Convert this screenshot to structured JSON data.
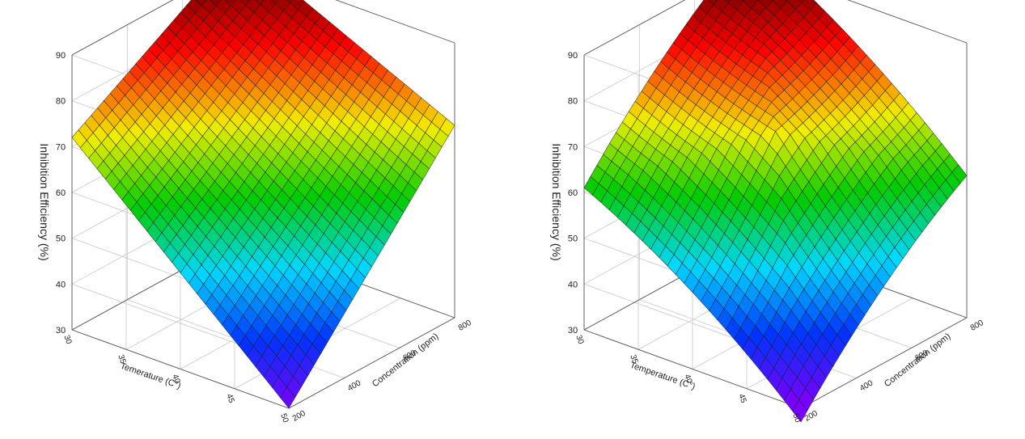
{
  "chart_data": [
    {
      "type": "surface3d",
      "zlabel": "Inhibition Efficiency (%)",
      "xlabel": "Temerature (C°)",
      "ylabel": "Concentration (ppm)",
      "zticks": [
        "30",
        "40",
        "50",
        "60",
        "70",
        "80",
        "90"
      ],
      "xticks": [
        "30",
        "35",
        "40",
        "45",
        "50"
      ],
      "yticks": [
        "200",
        "400",
        "600",
        "800"
      ],
      "xlim": [
        30,
        50
      ],
      "ylim": [
        200,
        800
      ],
      "zlim": [
        30,
        90
      ],
      "corners": {
        "x30_y200": 72,
        "x30_y800": 94,
        "x50_y200": 30,
        "x50_y800": 72
      },
      "colormap": [
        "#7b00ff",
        "#0033ff",
        "#00d8ff",
        "#00cc00",
        "#f2ee00",
        "#ff0000",
        "#4a0000"
      ]
    },
    {
      "type": "surface3d",
      "zlabel": "Inhibition Efficiency (%)",
      "xlabel": "Temperature (C°)",
      "ylabel": "Concentration (ppm)",
      "zticks": [
        "30",
        "40",
        "50",
        "60",
        "70",
        "80",
        "90"
      ],
      "xticks": [
        "30",
        "35",
        "40",
        "45",
        "50"
      ],
      "yticks": [
        "200",
        "400",
        "600",
        "800"
      ],
      "xlim": [
        30,
        50
      ],
      "ylim": [
        200,
        800
      ],
      "zlim": [
        30,
        90
      ],
      "corners": {
        "x30_y200": 61,
        "x30_y800": 95,
        "x50_y200": 27,
        "x50_y800": 61
      },
      "colormap": [
        "#7b00ff",
        "#0033ff",
        "#00d8ff",
        "#00cc00",
        "#f2ee00",
        "#ff0000",
        "#4a0000"
      ]
    }
  ]
}
